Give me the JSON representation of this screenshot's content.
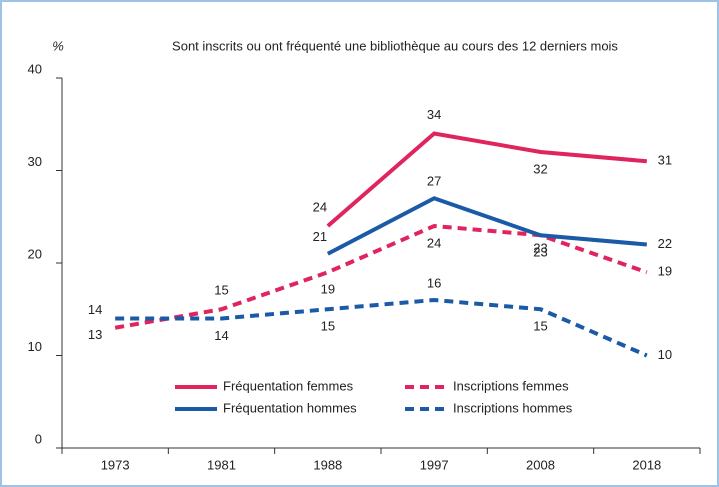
{
  "chart_data": {
    "type": "line",
    "title": "Sont inscrits ou ont fréquenté une bibliothèque au cours des 12 derniers mois",
    "ylabel": "%",
    "categories": [
      "1973",
      "1981",
      "1988",
      "1997",
      "2008",
      "2018"
    ],
    "series": [
      {
        "name": "Fréquentation femmes",
        "color": "#e0245e",
        "dashed": false,
        "values": [
          null,
          null,
          24,
          34,
          32,
          31
        ]
      },
      {
        "name": "Inscriptions femmes",
        "color": "#e0245e",
        "dashed": true,
        "values": [
          13,
          15,
          19,
          24,
          23,
          19
        ]
      },
      {
        "name": "Fréquentation hommes",
        "color": "#1a5aa6",
        "dashed": false,
        "values": [
          null,
          null,
          21,
          27,
          23,
          22
        ]
      },
      {
        "name": "Inscriptions hommes",
        "color": "#1a5aa6",
        "dashed": true,
        "values": [
          14,
          14,
          15,
          16,
          15,
          10
        ]
      }
    ],
    "ylim": [
      0,
      40
    ],
    "yticks": [
      0,
      10,
      20,
      30,
      40
    ],
    "grid": false
  }
}
